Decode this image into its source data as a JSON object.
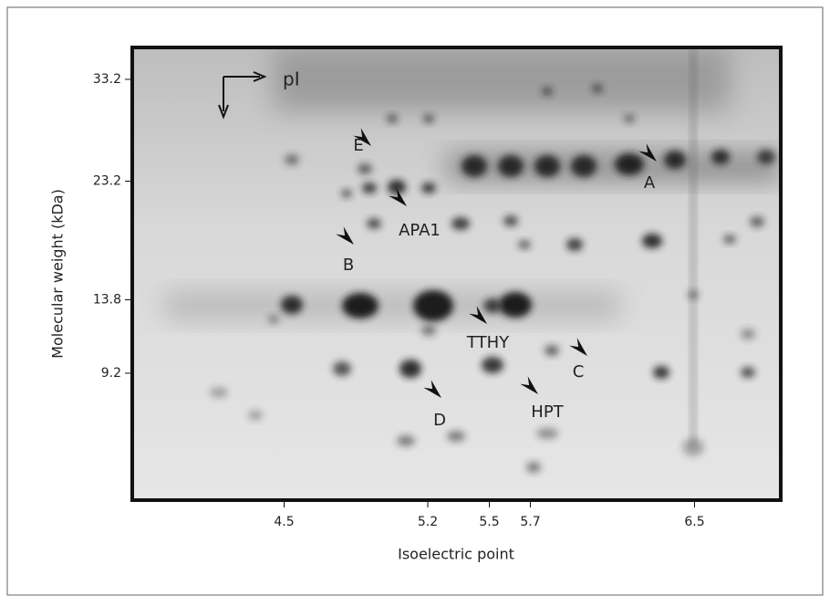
{
  "chart_data": {
    "type": "gel",
    "xlabel": "Isoelectric point",
    "ylabel": "Molecular weight (kDa)",
    "xlim": [
      3.76,
      6.92
    ],
    "xticks": [
      4.5,
      5.2,
      5.5,
      5.7,
      6.5
    ],
    "ylim": [
      3.44,
      36.7
    ],
    "yticks": [
      33.2,
      23.2,
      13.8,
      9.2
    ],
    "yscale": "sqrt",
    "axis_marker": "pI",
    "annotations": [
      "E",
      "A",
      "APA1",
      "B",
      "TTHY",
      "C",
      "HPT",
      "D"
    ]
  }
}
